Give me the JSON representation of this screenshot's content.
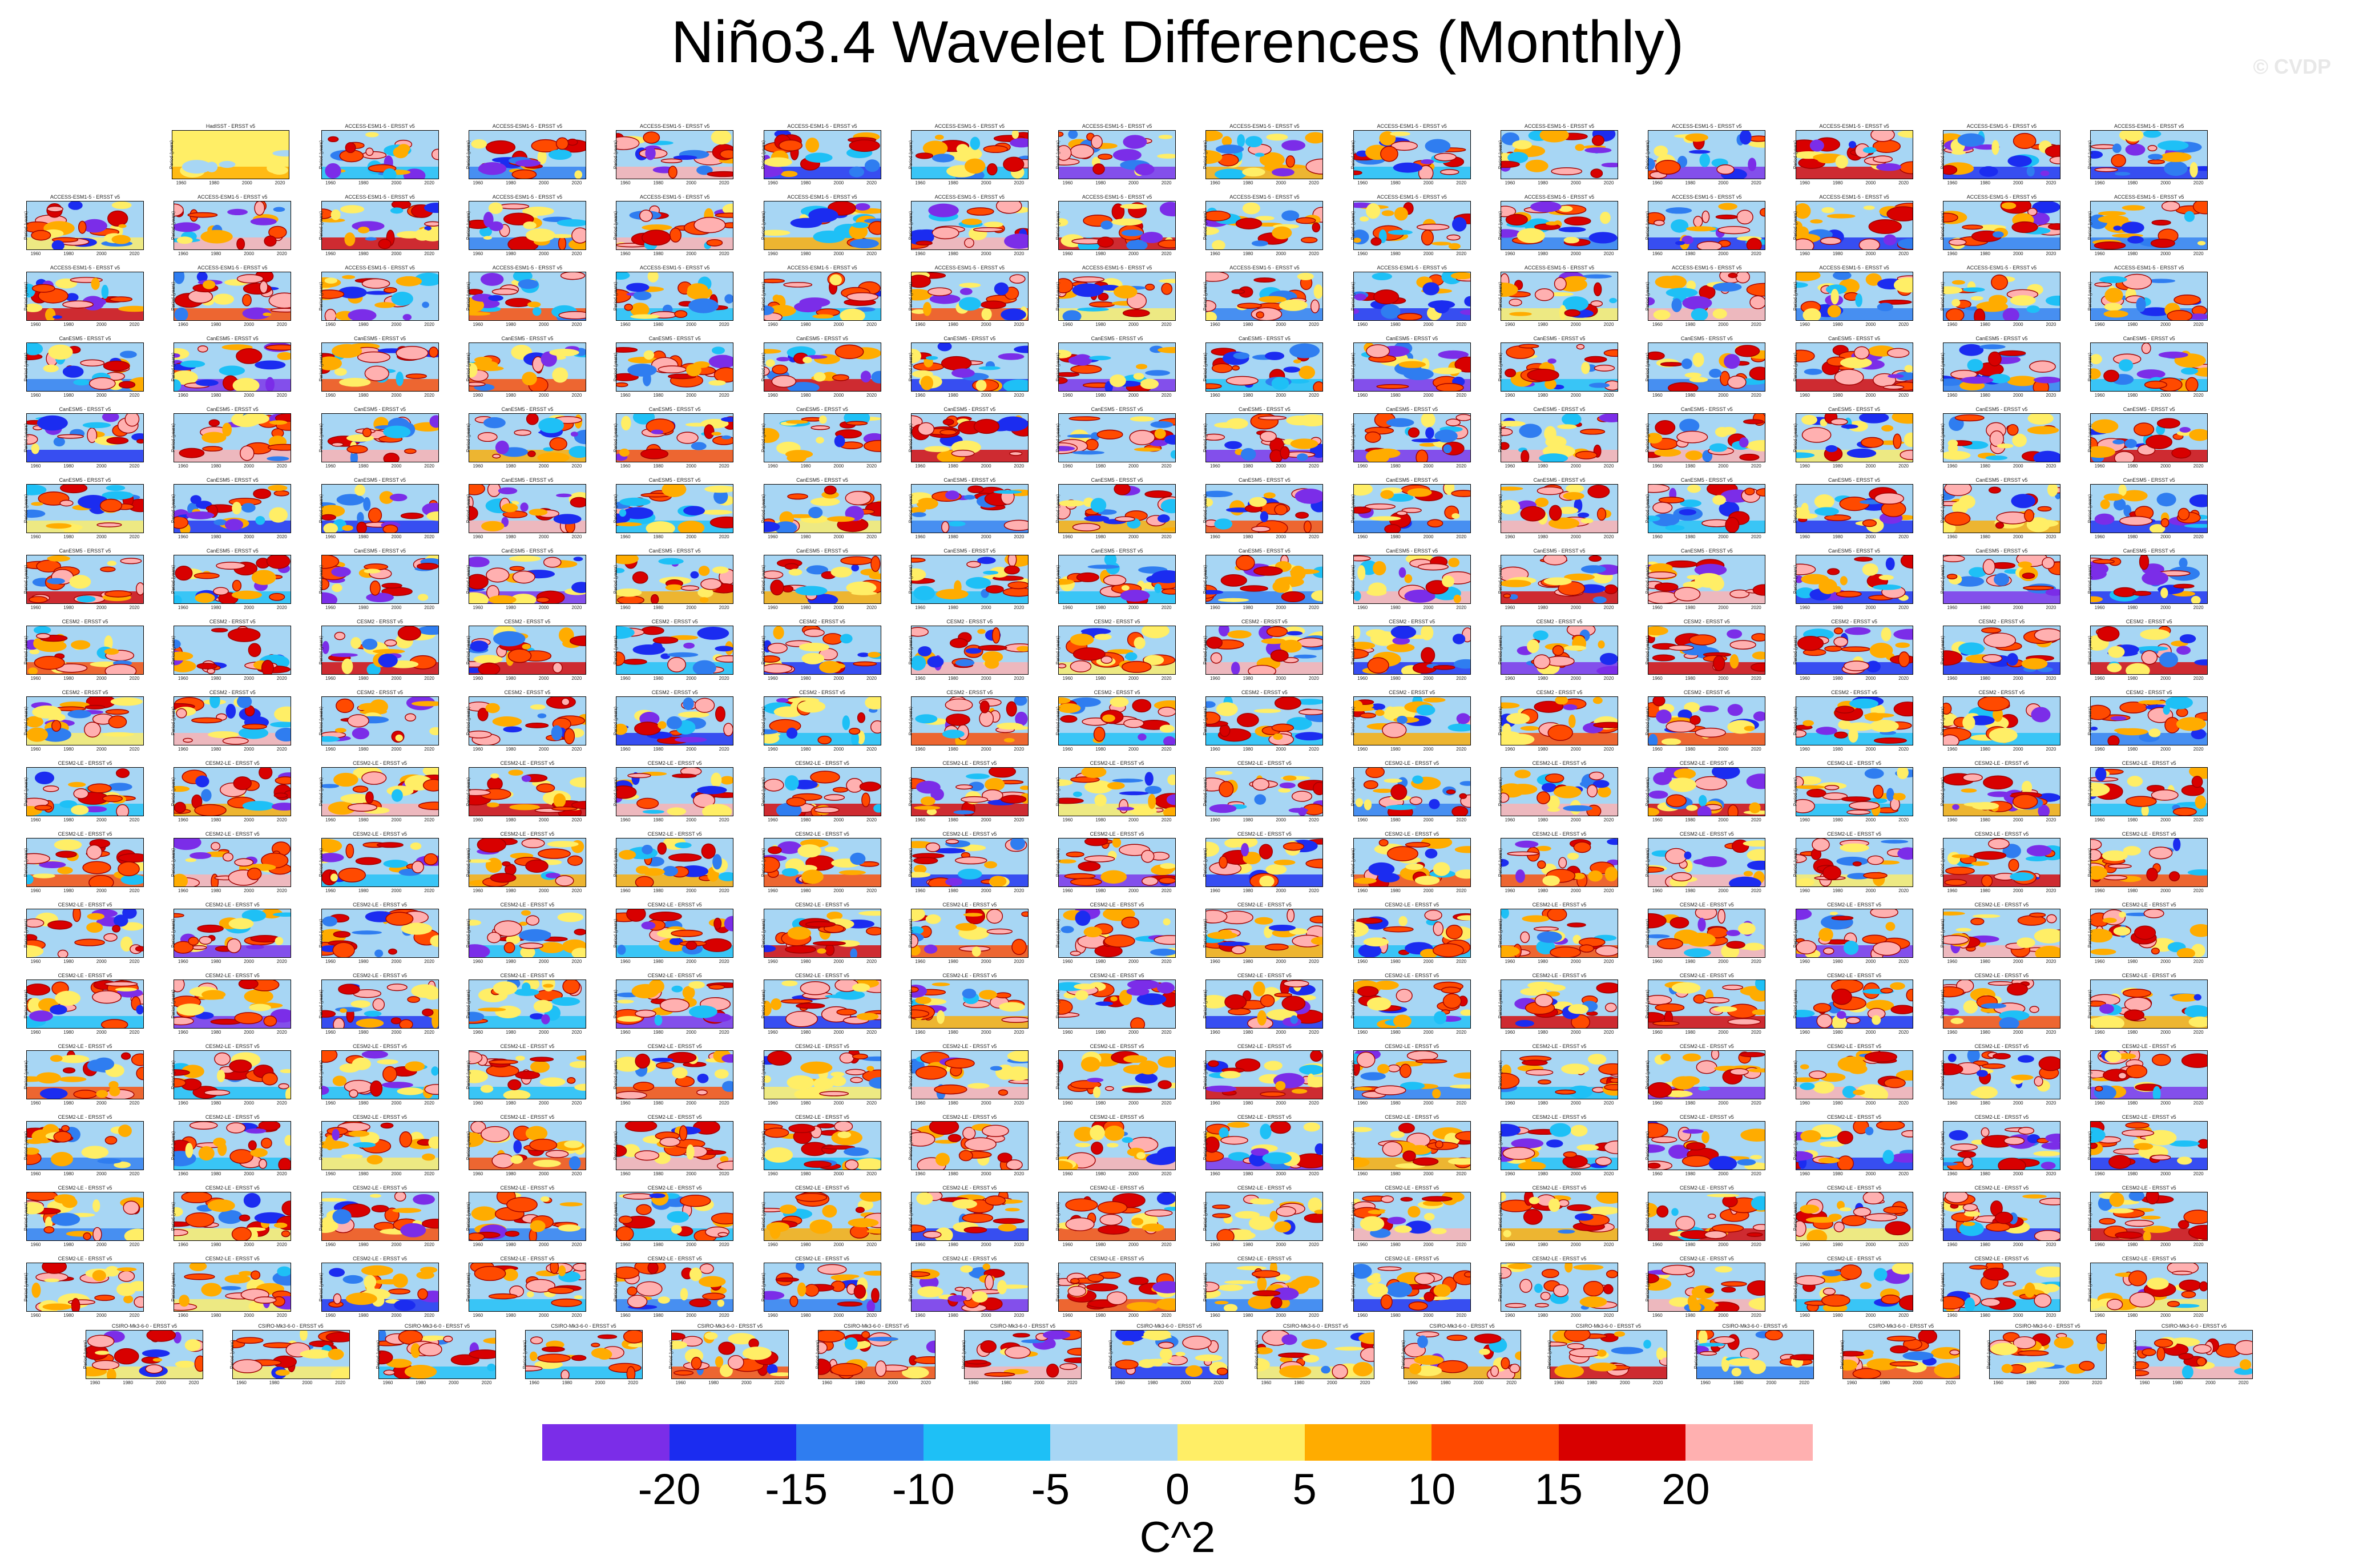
{
  "title": "Niño3.4 Wavelet Differences (Monthly)",
  "copyright": "© CVDP",
  "panel_ylabel": "Period (years)",
  "panel_xticks": [
    "1960",
    "1980",
    "2000",
    "2020"
  ],
  "first_panel_title": "HadISST - ERSST v5",
  "colorbar": {
    "levels": [
      -20,
      -15,
      -10,
      -5,
      0,
      5,
      10,
      15,
      20
    ],
    "tick_labels": [
      "-20",
      "-15",
      "-10",
      "-5",
      "0",
      "5",
      "10",
      "15",
      "20"
    ],
    "colors": [
      "#7b2de8",
      "#1b2cf0",
      "#2f7df0",
      "#1ec0f6",
      "#a7d6f4",
      "#ffee66",
      "#ffac00",
      "#ff4a00",
      "#d80000",
      "#ffb0b0"
    ],
    "units": "C^2"
  },
  "chart_data": {
    "type": "heatmap",
    "title": "Niño3.4 Wavelet Differences (Monthly)",
    "description_of_panels": "Small-multiple grid of wavelet power difference fields (model member minus ERSST v5), period (years) vs time",
    "x_axis": {
      "label": "",
      "ticks": [
        "1960",
        "1980",
        "2000",
        "2020"
      ]
    },
    "y_axis": {
      "label": "Period (years)"
    },
    "color_levels": [
      -20,
      -15,
      -10,
      -5,
      0,
      5,
      10,
      15,
      20
    ],
    "units": "C^2",
    "panel_rows": 18,
    "panel_cols": 15,
    "last_row_panels": 15,
    "panel_titles_row_groups": [
      "HadISST - ERSST v5",
      "ACCESS-ESM1-5 - ERSST v5",
      "CanESM5 - ERSST v5",
      "CESM2 - ERSST v5",
      "CESM2-LE - ERSST v5",
      "CSIRO-Mk3-6-0 - ERSST v5"
    ]
  }
}
